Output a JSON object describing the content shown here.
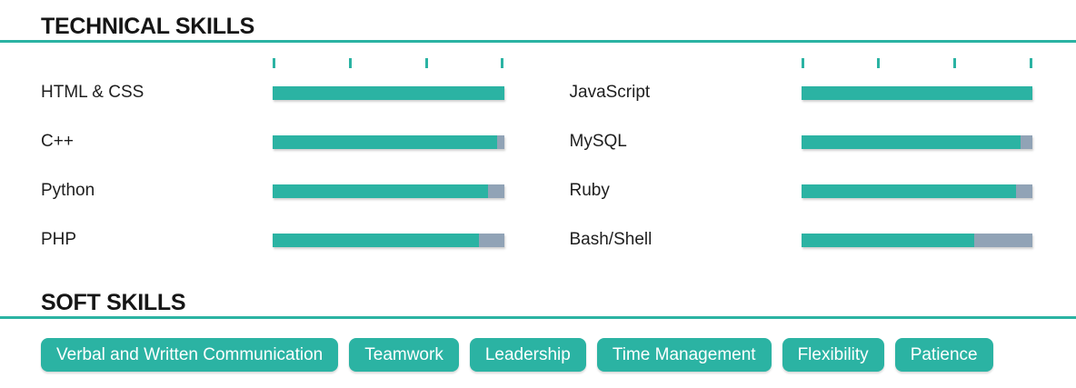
{
  "colors": {
    "accent": "#2bb3a3",
    "track": "#91a3b6",
    "heading": "#161616",
    "tag_text": "#ffffff"
  },
  "sections": {
    "technical": {
      "title": "TECHNICAL SKILLS",
      "scale_ticks": [
        0,
        33,
        67,
        100
      ],
      "columns": [
        {
          "skills": [
            {
              "name": "HTML & CSS",
              "level": 100
            },
            {
              "name": "C++",
              "level": 97
            },
            {
              "name": "Python",
              "level": 93
            },
            {
              "name": "PHP",
              "level": 89
            }
          ]
        },
        {
          "skills": [
            {
              "name": "JavaScript",
              "level": 100
            },
            {
              "name": "MySQL",
              "level": 95
            },
            {
              "name": "Ruby",
              "level": 93
            },
            {
              "name": "Bash/Shell",
              "level": 75
            }
          ]
        }
      ]
    },
    "soft": {
      "title": "SOFT SKILLS",
      "tags": [
        "Verbal and Written Communication",
        "Teamwork",
        "Leadership",
        "Time Management",
        "Flexibility",
        "Patience"
      ]
    }
  }
}
